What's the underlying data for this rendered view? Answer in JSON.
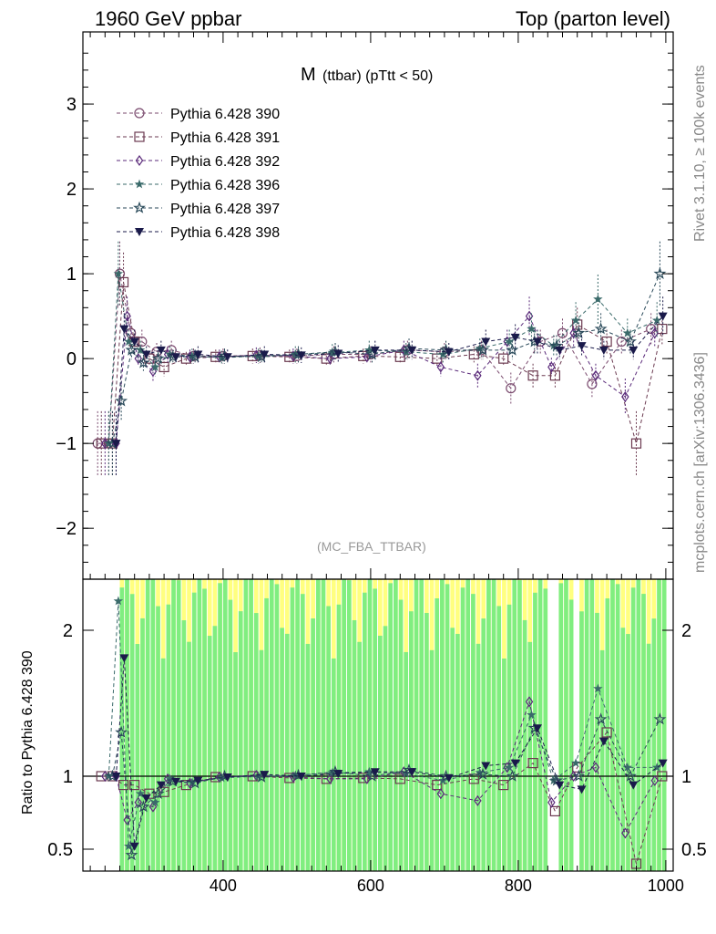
{
  "header": {
    "left": "1960 GeV ppbar",
    "right": "Top (parton level)"
  },
  "side": {
    "rivet": "Rivet 3.1.10, ≥ 100k events",
    "mcplots": "mcplots.cern.ch [arXiv:1306.3436]"
  },
  "chart_data": {
    "type": "scatter",
    "title_main": "M",
    "title_sub": "(ttbar) (pTtt < 50)",
    "analysis_tag": "(MC_FBA_TTBAR)",
    "ratio_ylabel": "Ratio to Pythia 6.428 390",
    "xlim": [
      210,
      1010
    ],
    "ylim_main": [
      -2.6,
      3.85
    ],
    "ylim_ratio": [
      0.35,
      2.35
    ],
    "xticks": [
      400,
      600,
      800,
      1000
    ],
    "yticks_main": [
      -2,
      -1,
      0,
      1,
      2,
      3
    ],
    "yticks_ratio": [
      0.5,
      1,
      2
    ],
    "legend_position": "top-left",
    "series": [
      {
        "name": "Pythia 6.428 390",
        "color": "#7a4a6e",
        "marker": "circle-open",
        "x": [
          230,
          245,
          260,
          275,
          290,
          310,
          330,
          360,
          400,
          450,
          500,
          550,
          600,
          650,
          700,
          750,
          790,
          830,
          860,
          900,
          940,
          980
        ],
        "y": [
          -1.0,
          -1.0,
          1.0,
          0.3,
          0.2,
          0.08,
          0.1,
          0.03,
          0.03,
          0.04,
          0.03,
          0.05,
          0.05,
          0.1,
          0.08,
          0.1,
          -0.35,
          0.2,
          0.3,
          -0.3,
          0.2,
          0.35
        ]
      },
      {
        "name": "Pythia 6.428 391",
        "color": "#6b3a50",
        "marker": "square-open",
        "x": [
          235,
          250,
          265,
          280,
          300,
          320,
          350,
          390,
          440,
          490,
          540,
          590,
          640,
          690,
          740,
          780,
          820,
          850,
          880,
          920,
          960,
          995
        ],
        "y": [
          -1.0,
          -1.0,
          0.9,
          0.2,
          0.0,
          -0.1,
          0.0,
          0.02,
          0.03,
          0.02,
          0.0,
          0.03,
          0.02,
          0.0,
          0.05,
          0.0,
          -0.2,
          -0.2,
          0.4,
          0.2,
          -1.0,
          0.35
        ]
      },
      {
        "name": "Pythia 6.428 392",
        "color": "#5a2a7a",
        "marker": "diamond-open",
        "x": [
          240,
          255,
          270,
          285,
          305,
          325,
          355,
          395,
          445,
          495,
          545,
          595,
          645,
          695,
          745,
          785,
          815,
          845,
          875,
          905,
          945,
          985
        ],
        "y": [
          -1.0,
          -1.0,
          0.5,
          0.0,
          -0.15,
          0.05,
          0.02,
          0.02,
          0.04,
          0.03,
          0.0,
          0.02,
          0.1,
          -0.1,
          -0.2,
          0.2,
          0.5,
          -0.1,
          0.3,
          -0.2,
          -0.45,
          0.3
        ]
      },
      {
        "name": "Pythia 6.428 396",
        "color": "#3a6a6a",
        "marker": "star-filled",
        "x": [
          245,
          258,
          272,
          288,
          308,
          328,
          358,
          398,
          448,
          498,
          548,
          598,
          648,
          698,
          748,
          788,
          818,
          848,
          878,
          908,
          948,
          988
        ],
        "y": [
          -1.0,
          1.0,
          0.2,
          0.1,
          -0.1,
          0.05,
          0.03,
          0.01,
          0.03,
          0.05,
          0.07,
          0.1,
          0.08,
          0.05,
          0.12,
          0.2,
          0.35,
          0.15,
          0.45,
          0.7,
          0.3,
          0.45
        ]
      },
      {
        "name": "Pythia 6.428 397",
        "color": "#2a4a5a",
        "marker": "star-open",
        "x": [
          250,
          262,
          276,
          292,
          312,
          332,
          362,
          402,
          452,
          502,
          552,
          602,
          652,
          702,
          752,
          792,
          822,
          852,
          882,
          912,
          952,
          992
        ],
        "y": [
          -1.0,
          -0.5,
          0.1,
          -0.05,
          0.0,
          0.02,
          0.02,
          0.03,
          0.02,
          0.05,
          0.08,
          0.05,
          0.12,
          0.1,
          0.1,
          0.1,
          0.2,
          0.15,
          0.3,
          0.35,
          0.2,
          1.0
        ]
      },
      {
        "name": "Pythia 6.428 398",
        "color": "#1a1a4a",
        "marker": "triangle-down-filled",
        "x": [
          255,
          266,
          280,
          296,
          316,
          336,
          366,
          406,
          456,
          506,
          556,
          606,
          656,
          706,
          756,
          796,
          826,
          856,
          886,
          916,
          956,
          996
        ],
        "y": [
          -1.0,
          0.35,
          0.2,
          0.05,
          0.1,
          0.02,
          0.05,
          0.02,
          0.05,
          0.04,
          0.06,
          0.1,
          0.1,
          0.08,
          0.2,
          0.25,
          0.2,
          0.1,
          0.15,
          0.1,
          0.1,
          0.5
        ]
      }
    ]
  }
}
